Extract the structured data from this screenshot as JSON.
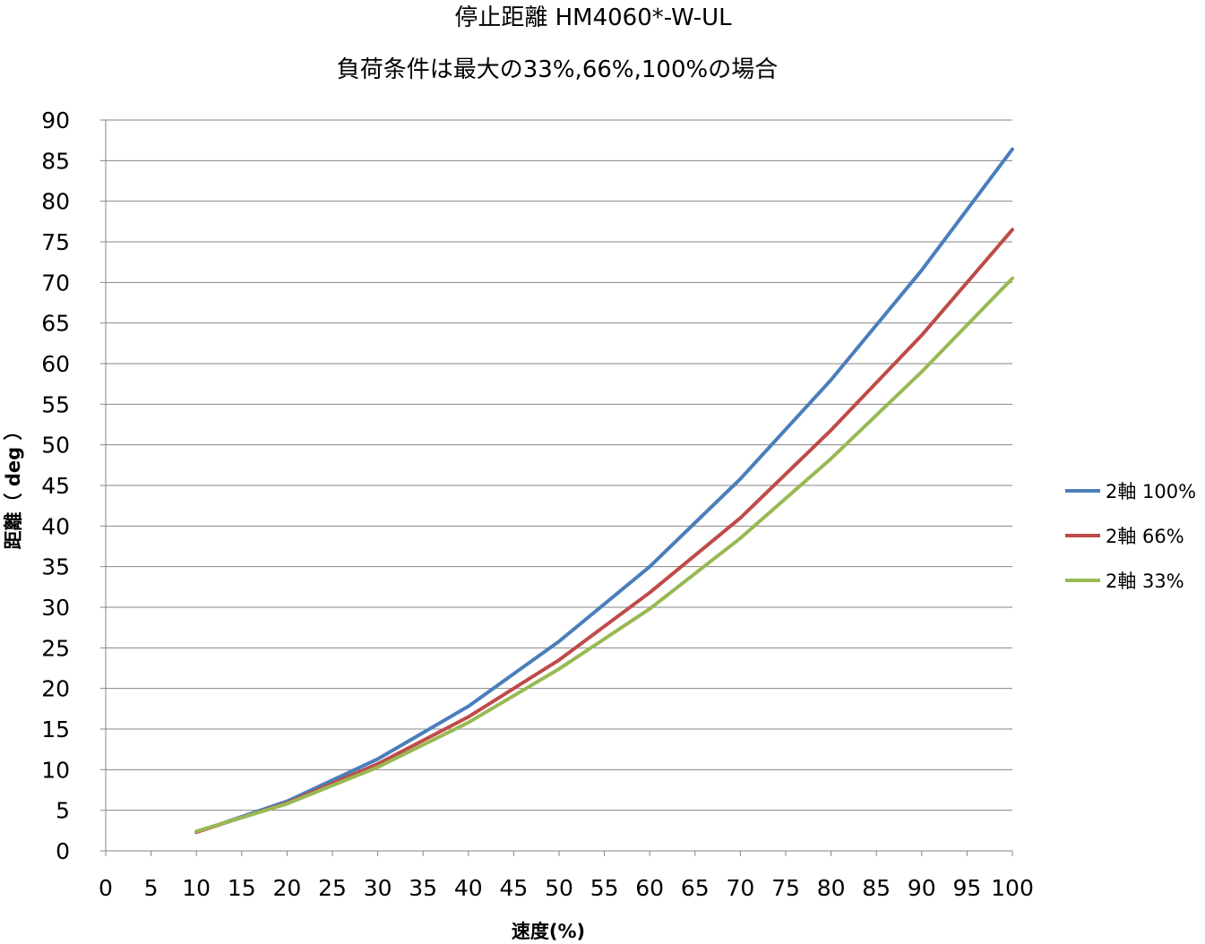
{
  "chart_data": {
    "type": "line",
    "title": "停止距離 HM4060*-W-UL",
    "subtitle": "負荷条件は最大の33%,66%,100%の場合",
    "xlabel": "速度(%)",
    "ylabel": "距離（ deg ）",
    "xlim": [
      0,
      100
    ],
    "ylim": [
      0,
      90
    ],
    "x_ticks": [
      "0",
      "5",
      "10",
      "15",
      "20",
      "25",
      "30",
      "35",
      "40",
      "45",
      "50",
      "55",
      "60",
      "65",
      "70",
      "75",
      "80",
      "85",
      "90",
      "95",
      "100"
    ],
    "y_ticks": [
      "0",
      "5",
      "10",
      "15",
      "20",
      "25",
      "30",
      "35",
      "40",
      "45",
      "50",
      "55",
      "60",
      "65",
      "70",
      "75",
      "80",
      "85",
      "90"
    ],
    "grid": "horizontal",
    "legend_position": "right",
    "x": [
      10,
      20,
      30,
      40,
      50,
      60,
      70,
      80,
      90,
      100
    ],
    "series": [
      {
        "name": "2軸 100%",
        "color": "#4a7ebb",
        "values": [
          2.3,
          6.1,
          11.3,
          17.8,
          25.8,
          35.0,
          45.8,
          58.0,
          71.5,
          86.4
        ]
      },
      {
        "name": "2軸 66%",
        "color": "#be4b48",
        "values": [
          2.3,
          5.9,
          10.7,
          16.5,
          23.5,
          31.8,
          41.0,
          51.8,
          63.5,
          76.5
        ]
      },
      {
        "name": "2軸 33%",
        "color": "#98b954",
        "values": [
          2.4,
          5.8,
          10.3,
          15.8,
          22.4,
          29.8,
          38.5,
          48.3,
          59.0,
          70.5
        ]
      }
    ]
  }
}
